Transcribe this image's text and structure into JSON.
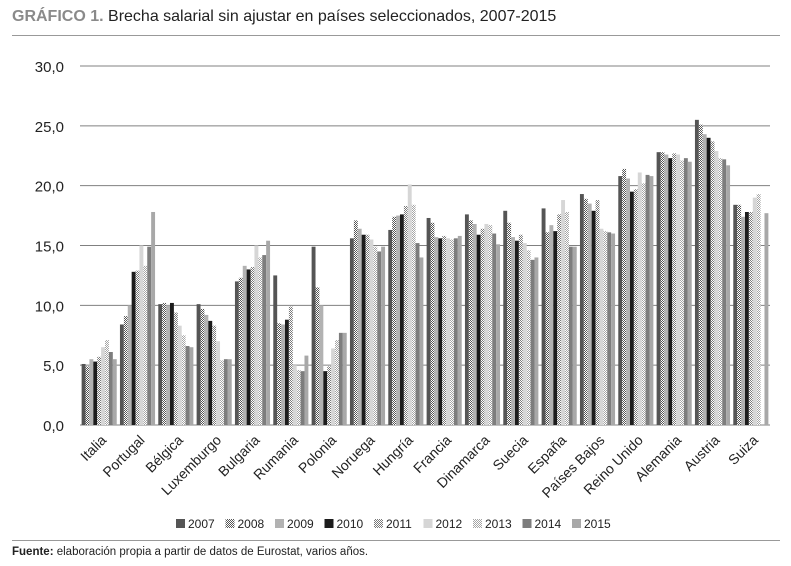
{
  "figure": {
    "label": "GRÁFICO 1.",
    "title": "Brecha salarial sin ajustar en países seleccionados, 2007-2015",
    "source_label": "Fuente:",
    "source_text": "elaboración propia a partir de datos de Eurostat, varios años."
  },
  "chart_data": {
    "type": "bar",
    "title": "Brecha salarial sin ajustar en países seleccionados, 2007-2015",
    "xlabel": "",
    "ylabel": "",
    "ylim": [
      0,
      30
    ],
    "yticks": [
      "0,0",
      "5,0",
      "10,0",
      "15,0",
      "20,0",
      "25,0",
      "30,0"
    ],
    "grid": true,
    "legend_position": "bottom",
    "categories": [
      "Italia",
      "Portugal",
      "Bélgica",
      "Luxemburgo",
      "Bulgaria",
      "Rumania",
      "Polonia",
      "Noruega",
      "Hungría",
      "Francia",
      "Dinamarca",
      "Suecia",
      "España",
      "Países Bajos",
      "Reino Unido",
      "Alemania",
      "Austria",
      "Suiza"
    ],
    "series": [
      {
        "name": "2007",
        "color": "#555555",
        "pattern": "solid",
        "values": [
          5.1,
          8.4,
          10.1,
          10.1,
          12.0,
          12.5,
          14.9,
          15.6,
          16.3,
          17.3,
          17.6,
          17.9,
          18.1,
          19.3,
          20.8,
          22.8,
          25.5,
          18.4
        ]
      },
      {
        "name": "2008",
        "color": "#555555",
        "pattern": "check",
        "values": [
          4.9,
          9.1,
          10.2,
          9.7,
          12.3,
          8.5,
          11.5,
          17.1,
          17.4,
          16.9,
          17.1,
          16.9,
          16.1,
          18.9,
          21.4,
          22.8,
          25.1,
          18.4
        ]
      },
      {
        "name": "2009",
        "color": "#b2b2b2",
        "pattern": "solid",
        "values": [
          5.5,
          10.0,
          10.0,
          9.2,
          13.3,
          8.4,
          10.0,
          16.4,
          17.5,
          15.7,
          16.8,
          15.7,
          16.7,
          18.5,
          20.6,
          22.6,
          24.3,
          17.4
        ]
      },
      {
        "name": "2010",
        "color": "#1c1c1c",
        "pattern": "solid",
        "values": [
          5.3,
          12.8,
          10.2,
          8.7,
          13.0,
          8.8,
          4.5,
          15.9,
          17.6,
          15.6,
          15.9,
          15.4,
          16.2,
          17.9,
          19.5,
          22.3,
          24.0,
          17.8
        ]
      },
      {
        "name": "2011",
        "color": "#787878",
        "pattern": "check",
        "values": [
          5.7,
          12.9,
          9.4,
          8.3,
          13.2,
          9.9,
          4.9,
          15.9,
          18.3,
          15.8,
          16.4,
          15.9,
          17.6,
          18.8,
          19.7,
          22.7,
          23.7,
          17.8
        ]
      },
      {
        "name": "2012",
        "color": "#d6d6d6",
        "pattern": "solid",
        "values": [
          6.5,
          15.0,
          8.3,
          7.0,
          15.0,
          5.0,
          6.4,
          15.5,
          20.1,
          15.6,
          16.8,
          15.2,
          18.8,
          16.4,
          21.1,
          22.6,
          22.9,
          19.0
        ]
      },
      {
        "name": "2013",
        "color": "#a5a5a5",
        "pattern": "check",
        "values": [
          7.1,
          13.3,
          7.5,
          5.4,
          14.0,
          4.6,
          7.1,
          14.9,
          18.4,
          15.5,
          16.7,
          14.6,
          17.8,
          16.2,
          20.2,
          22.1,
          22.3,
          19.3
        ]
      },
      {
        "name": "2014",
        "color": "#7d7d7d",
        "pattern": "solid",
        "values": [
          6.1,
          14.9,
          6.6,
          5.5,
          14.2,
          4.5,
          7.7,
          14.5,
          15.2,
          15.6,
          16.0,
          13.8,
          14.9,
          16.1,
          20.9,
          22.3,
          22.2,
          0
        ]
      },
      {
        "name": "2015",
        "color": "#a8a8a8",
        "pattern": "solid",
        "values": [
          5.5,
          17.8,
          6.5,
          5.5,
          15.4,
          5.8,
          7.7,
          14.9,
          14.0,
          15.8,
          15.1,
          14.0,
          14.9,
          16.0,
          20.8,
          22.0,
          21.7,
          17.7
        ]
      }
    ]
  }
}
